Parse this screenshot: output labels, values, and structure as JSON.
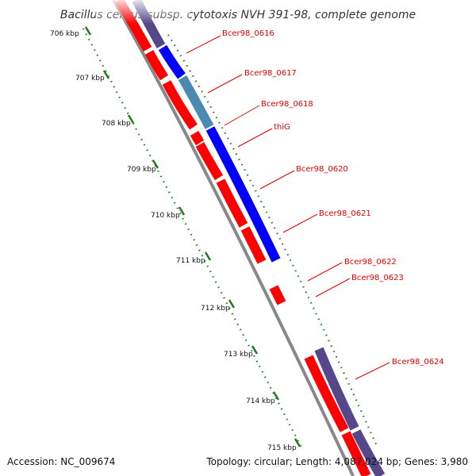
{
  "title": "Bacillus cereus subsp. cytotoxis NVH 391-98, complete genome",
  "accession": "Accession: NC_009674",
  "topology": "Topology: circular; Length: 4,087,024 bp; Genes: 3,980",
  "colors": {
    "forward_cds": "#ff0000",
    "reverse_cds": "#0000ff",
    "overlap_cds": "#4a8ab0",
    "purple_track": "#55478a",
    "backbone": "#888888",
    "tick": "#1e7a1e",
    "label": "#e00000"
  },
  "kbp_ticks": [
    {
      "label": "706 kbp"
    },
    {
      "label": "707 kbp"
    },
    {
      "label": "708 kbp"
    },
    {
      "label": "709 kbp"
    },
    {
      "label": "710 kbp"
    },
    {
      "label": "711 kbp"
    },
    {
      "label": "712 kbp"
    },
    {
      "label": "713 kbp"
    },
    {
      "label": "714 kbp"
    },
    {
      "label": "715 kbp"
    }
  ],
  "genes": [
    {
      "label": "Bcer98_0616"
    },
    {
      "label": "Bcer98_0617"
    },
    {
      "label": "Bcer98_0618"
    },
    {
      "label": "thiG"
    },
    {
      "label": "Bcer98_0620"
    },
    {
      "label": "Bcer98_0621"
    },
    {
      "label": "Bcer98_0622"
    },
    {
      "label": "Bcer98_0623"
    },
    {
      "label": "Bcer98_0624"
    }
  ]
}
